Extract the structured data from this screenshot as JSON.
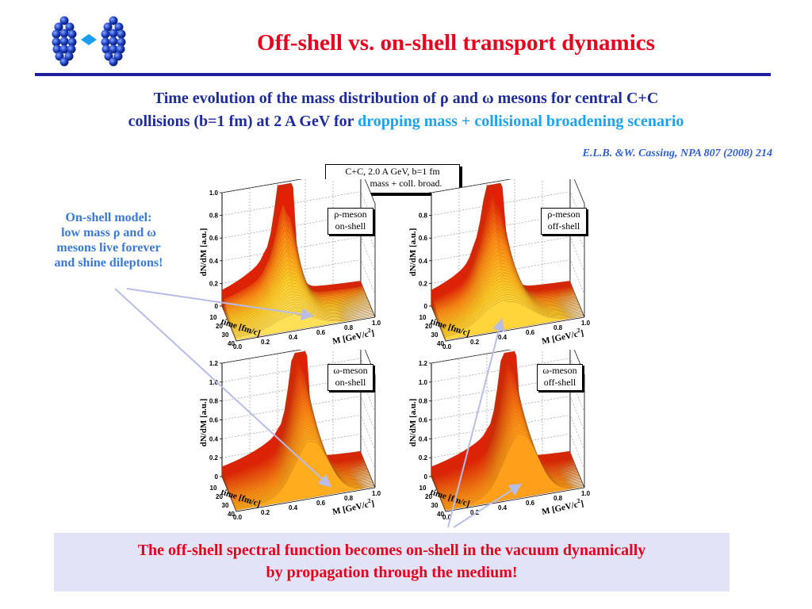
{
  "title": "Off-shell vs. on-shell transport dynamics",
  "subtitle": {
    "line1": "Time evolution of the mass distribution of ρ and ω mesons for central C+C",
    "line2_prefix": "collisions (b=1 fm) at 2 A GeV for ",
    "line2_highlight": "dropping mass + collisional broadening scenario"
  },
  "reference": "E.L.B. &W. Cassing, NPA 807 (2008) 214",
  "onshell_note": [
    "On-shell model:",
    "low mass ρ and ω",
    "mesons live  forever",
    "and shine dileptons!"
  ],
  "info_box": [
    "C+C,   2.0 A GeV,   b=1 fm",
    "dropp. mass + coll. broad."
  ],
  "plots": [
    {
      "line1": "ρ-meson",
      "line2": "on-shell",
      "z_ticks": [
        "0",
        "0.2",
        "0.4",
        "0.6",
        "0.8",
        "1.0"
      ]
    },
    {
      "line1": "ρ-meson",
      "line2": "off-shell",
      "z_ticks": [
        "0",
        "0.2",
        "0.4",
        "0.6",
        "0.8",
        ""
      ]
    },
    {
      "line1": "ω-meson",
      "line2": "on-shell",
      "z_ticks": [
        "0",
        "0.2",
        "0.4",
        "0.6",
        "0.8",
        "1.0",
        "1.2"
      ]
    },
    {
      "line1": "ω-meson",
      "line2": "off-shell",
      "z_ticks": [
        "0",
        "0.2",
        "0.4",
        "0.6",
        "0.8",
        "1.0",
        "1.2"
      ]
    }
  ],
  "axes": {
    "z_label": "dN/dM [a.u.]",
    "time_label": "time [fm/c]",
    "mass_label": "M [GeV/c",
    "mass_label_sup": "2",
    "mass_label_end": "]",
    "time_ticks": [
      "10",
      "20",
      "30",
      "40"
    ],
    "mass_ticks": [
      "0.0",
      "0.2",
      "0.4",
      "0.6",
      "0.8",
      "1.0"
    ]
  },
  "conclusion": [
    "The off-shell spectral function becomes on-shell in the vacuum dynamically",
    "by propagation through the medium!"
  ],
  "colors": {
    "title": "#e8001c",
    "subtitle": "#1d2b9c",
    "highlight": "#1fa2ee",
    "rule": "#1f1f9e",
    "conclusion_bg": "#e2e3f7"
  }
}
